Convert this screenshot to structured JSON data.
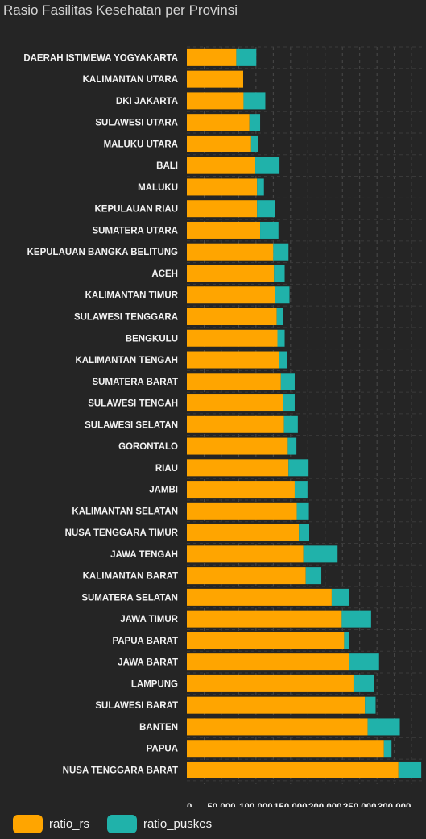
{
  "chart_data": {
    "type": "bar",
    "orientation": "horizontal",
    "stacked": true,
    "title": "Rasio Fasilitas Kesehatan per Provinsi",
    "categories": [
      "DAERAH ISTIMEWA YOGYAKARTA",
      "KALIMANTAN UTARA",
      "DKI JAKARTA",
      "SULAWESI UTARA",
      "MALUKU UTARA",
      "BALI",
      "MALUKU",
      "KEPULAUAN RIAU",
      "SUMATERA UTARA",
      "KEPULAUAN BANGKA BELITUNG",
      "ACEH",
      "KALIMANTAN TIMUR",
      "SULAWESI TENGGARA",
      "BENGKULU",
      "KALIMANTAN TENGAH",
      "SUMATERA BARAT",
      "SULAWESI TENGAH",
      "SULAWESI SELATAN",
      "GORONTALO",
      "RIAU",
      "JAMBI",
      "KALIMANTAN SELATAN",
      "NUSA TENGGARA TIMUR",
      "JAWA TENGAH",
      "KALIMANTAN BARAT",
      "SUMATERA SELATAN",
      "JAWA TIMUR",
      "PAPUA BARAT",
      "JAWA BARAT",
      "LAMPUNG",
      "SULAWESI BARAT",
      "BANTEN",
      "PAPUA",
      "NUSA TENGGARA BARAT"
    ],
    "series": [
      {
        "name": "ratio_rs",
        "color": "#FFA500",
        "values": [
          71500,
          81500,
          82000,
          90500,
          93000,
          99000,
          101500,
          101500,
          106000,
          125000,
          126000,
          127500,
          130000,
          131000,
          133000,
          136000,
          139500,
          140500,
          146000,
          147000,
          156000,
          159000,
          162000,
          168500,
          172000,
          209500,
          224000,
          227500,
          234500,
          241000,
          257500,
          261500,
          285000,
          306000
        ]
      },
      {
        "name": "ratio_puskes",
        "color": "#20B2AA",
        "values": [
          29000,
          0,
          31500,
          15500,
          10500,
          35000,
          10000,
          26500,
          26500,
          22000,
          15500,
          21000,
          9000,
          10500,
          12500,
          20000,
          16500,
          20000,
          12500,
          29000,
          18500,
          17500,
          15000,
          49500,
          22500,
          25500,
          42500,
          7000,
          43500,
          30000,
          15500,
          46500,
          11000,
          33000
        ]
      }
    ],
    "x_ticks": [
      "0",
      "50,000",
      "100,000",
      "150,000",
      "200,000",
      "250,000",
      "300,000"
    ],
    "xlim": [
      0,
      340000
    ],
    "grid": true,
    "legend_position": "bottom-left"
  }
}
